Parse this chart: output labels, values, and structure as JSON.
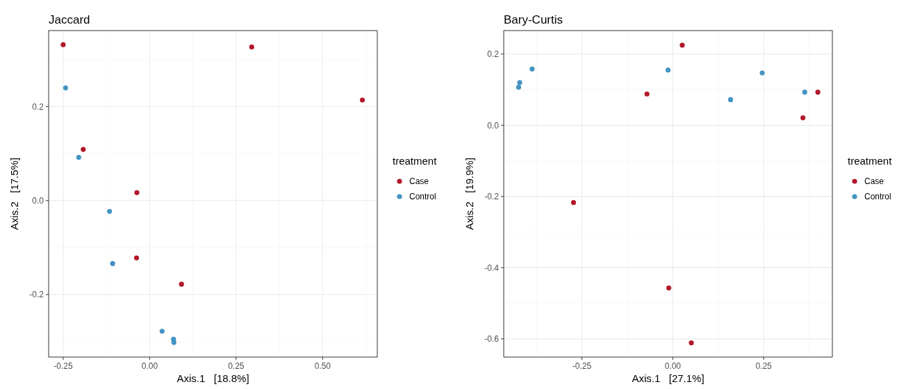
{
  "chart_data": [
    {
      "type": "scatter",
      "title": "Jaccard",
      "xlabel": "Axis.1   [18.8%]",
      "ylabel": "Axis.2   [17.5%]",
      "legend_title": "treatment",
      "legend": "right",
      "grid": true,
      "marker": "circle",
      "xlim": [
        -0.292,
        0.658
      ],
      "ylim": [
        -0.333,
        0.362
      ],
      "xticks": [
        {
          "value": -0.25,
          "label": "-0.25"
        },
        {
          "value": 0,
          "label": "0.00"
        },
        {
          "value": 0.25,
          "label": "0.25"
        },
        {
          "value": 0.5,
          "label": "0.50"
        }
      ],
      "yticks": [
        {
          "value": -0.2,
          "label": "-0.2"
        },
        {
          "value": 0,
          "label": "0.0"
        },
        {
          "value": 0.2,
          "label": "0.2"
        }
      ],
      "series": [
        {
          "name": "Case",
          "color": "#b2182b",
          "x": [
            -0.25,
            0.295,
            0.615,
            -0.192,
            -0.037,
            -0.038,
            0.092
          ],
          "values": [
            0.332,
            0.327,
            0.214,
            0.109,
            0.017,
            -0.122,
            -0.178
          ]
        },
        {
          "name": "Control",
          "color": "#4393c3",
          "x": [
            -0.243,
            -0.205,
            -0.116,
            -0.107,
            0.036,
            0.069,
            0.07
          ],
          "values": [
            0.24,
            0.092,
            -0.023,
            -0.134,
            -0.278,
            -0.295,
            -0.302
          ]
        }
      ]
    },
    {
      "type": "scatter",
      "title": "Bary-Curtis",
      "xlabel": "Axis.1   [27.1%]",
      "ylabel": "Axis.2   [19.9%]",
      "legend_title": "treatment",
      "legend": "right",
      "grid": true,
      "marker": "circle",
      "xlim": [
        -0.465,
        0.439
      ],
      "ylim": [
        -0.651,
        0.266
      ],
      "xticks": [
        {
          "value": -0.25,
          "label": "-0.25"
        },
        {
          "value": 0,
          "label": "0.00"
        },
        {
          "value": 0.25,
          "label": "0.25"
        }
      ],
      "yticks": [
        {
          "value": -0.6,
          "label": "-0.6"
        },
        {
          "value": -0.4,
          "label": "-0.4"
        },
        {
          "value": -0.2,
          "label": "-0.2"
        },
        {
          "value": 0,
          "label": "0.0"
        },
        {
          "value": 0.2,
          "label": "0.2"
        }
      ],
      "series": [
        {
          "name": "Case",
          "color": "#b2182b",
          "x": [
            0.026,
            -0.071,
            0.399,
            0.358,
            -0.273,
            -0.011,
            0.051
          ],
          "values": [
            0.225,
            0.088,
            0.093,
            0.021,
            -0.217,
            -0.457,
            -0.611
          ]
        },
        {
          "name": "Control",
          "color": "#4393c3",
          "x": [
            -0.387,
            -0.421,
            -0.424,
            -0.013,
            0.246,
            0.159,
            0.363
          ],
          "values": [
            0.158,
            0.12,
            0.107,
            0.155,
            0.147,
            0.072,
            0.093
          ]
        }
      ]
    }
  ]
}
